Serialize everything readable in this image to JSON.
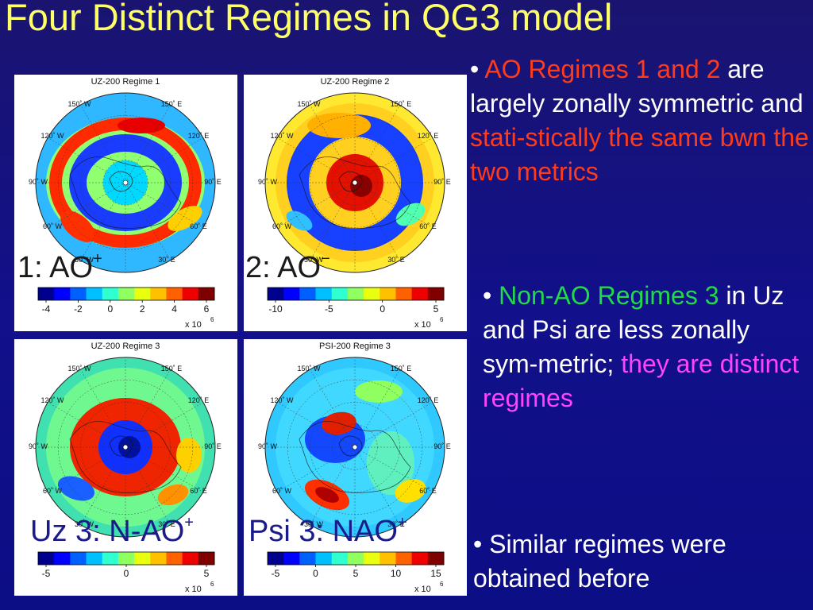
{
  "slide": {
    "title": "Four Distinct Regimes in QG3 model"
  },
  "panels": [
    {
      "heading": "UZ-200 Regime 1",
      "overlay_label": "1:  AO",
      "overlay_sup": "+",
      "overlay_color": "#1a1a1a",
      "colorbar_ticks": [
        "-4",
        "-2",
        "0",
        "2",
        "4",
        "6"
      ],
      "scale": "x 10",
      "scale_exp": "6",
      "pattern": "ao_plus"
    },
    {
      "heading": "UZ-200 Regime 2",
      "overlay_label": "2:  AO",
      "overlay_sup": "−",
      "overlay_color": "#1a1a1a",
      "colorbar_ticks": [
        "-10",
        "-5",
        "0",
        "5"
      ],
      "scale": "x 10",
      "scale_exp": "6",
      "pattern": "ao_minus"
    },
    {
      "heading": "UZ-200 Regime 3",
      "overlay_label": "Uz 3:  N-AO",
      "overlay_sup": "+",
      "overlay_color": "#1a1a8a",
      "colorbar_ticks": [
        "-5",
        "0",
        "5"
      ],
      "scale": "x 10",
      "scale_exp": "6",
      "pattern": "uz3"
    },
    {
      "heading": "PSI-200 Regime 3",
      "overlay_label": "Psi 3:  NAO",
      "overlay_sup": "+",
      "overlay_color": "#1a1a8a",
      "colorbar_ticks": [
        "-5",
        "0",
        "5",
        "10",
        "15"
      ],
      "scale": "x 10",
      "scale_exp": "6",
      "pattern": "psi3"
    }
  ],
  "map_labels": [
    "150˚ W",
    "150˚ E",
    "120˚ W",
    "120˚ E",
    "90˚ W",
    "90˚ E",
    "60˚ W",
    "60˚ E",
    "30˚ W",
    "30˚ E"
  ],
  "bullets": {
    "b1": {
      "mark": "• ",
      "p1": "AO Regimes 1 and 2",
      "p2": " are largely zonally symmetric and ",
      "p3": "stati-stically the same bwn the two metrics"
    },
    "b2": {
      "mark": "• ",
      "p1": "Non-AO Regimes 3",
      "p2": " in Uz and Psi are less zonally sym-metric; ",
      "p3": "they are distinct regimes"
    },
    "b3": {
      "mark": "• ",
      "p1": "Similar regimes were obtained before"
    }
  },
  "colors": {
    "title": "#ffff66",
    "background": "#14108a",
    "red_text": "#ff3b1a",
    "green_text": "#22d94a",
    "magenta_text": "#ff44ff"
  }
}
